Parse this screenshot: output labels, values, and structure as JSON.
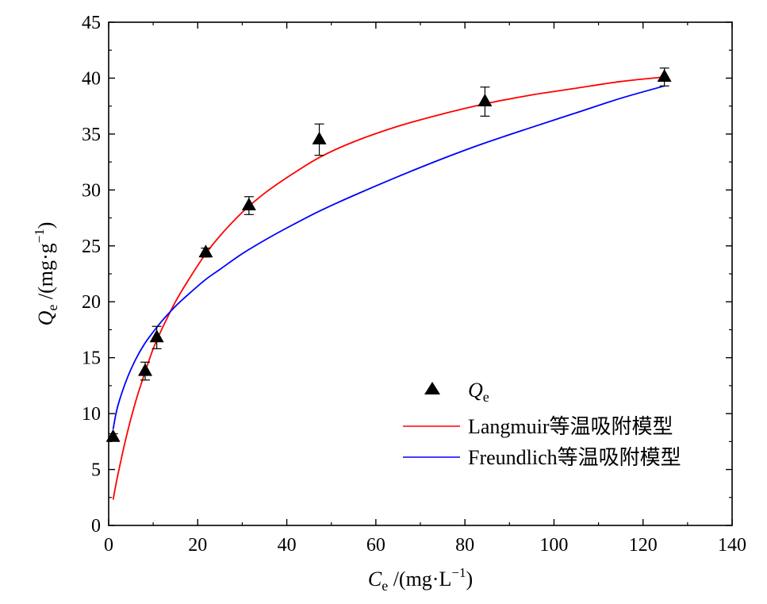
{
  "chart_data": {
    "type": "scatter",
    "title": "",
    "xlabel": {
      "main": "C",
      "sub": "e",
      "unit_pre": " /(mg·L",
      "unit_sup": "−1",
      "unit_post": ")"
    },
    "ylabel": {
      "main": "Q",
      "sub": "e",
      "unit_pre": " /(mg·g",
      "unit_sup": "−1",
      "unit_post": ")"
    },
    "xlim": [
      0,
      140
    ],
    "ylim": [
      0,
      45
    ],
    "xticks": [
      0,
      20,
      40,
      60,
      80,
      100,
      120,
      140
    ],
    "yticks": [
      0,
      5,
      10,
      15,
      20,
      25,
      30,
      35,
      40,
      45
    ],
    "grid": false,
    "legend_position": "lower-right",
    "series": [
      {
        "name": "Q",
        "name_sub": "e",
        "kind": "points",
        "marker": "triangle",
        "color": "#000000",
        "x": [
          1.0,
          8.2,
          10.8,
          21.8,
          31.5,
          47.3,
          84.5,
          124.8
        ],
        "y": [
          7.9,
          13.8,
          16.8,
          24.4,
          28.6,
          34.5,
          37.9,
          40.1
        ],
        "err": [
          0.3,
          0.8,
          1.0,
          0.4,
          0.8,
          1.4,
          1.3,
          0.8
        ]
      },
      {
        "name": "Langmuir等温吸附模型",
        "kind": "line",
        "color": "#ff0000",
        "x": [
          1,
          2,
          4,
          6,
          8,
          10,
          12,
          15,
          18,
          21.8,
          25,
          30,
          35,
          40,
          47.3,
          55,
          65,
          75,
          84.5,
          95,
          105,
          115,
          124.8
        ],
        "y": [
          2.3,
          4.4,
          8.0,
          11.0,
          13.5,
          15.8,
          17.6,
          20.0,
          22.0,
          24.3,
          25.9,
          28.0,
          29.7,
          31.1,
          32.9,
          34.3,
          35.7,
          36.8,
          37.7,
          38.5,
          39.1,
          39.7,
          40.1
        ]
      },
      {
        "name": "Freundlich等温吸附模型",
        "kind": "line",
        "color": "#0000ff",
        "x": [
          1,
          2,
          4,
          6,
          8,
          10,
          12,
          15,
          18,
          21.8,
          25,
          30,
          35,
          40,
          47.3,
          55,
          65,
          75,
          84.5,
          95,
          105,
          115,
          124.8
        ],
        "y": [
          8.6,
          10.6,
          13.0,
          14.8,
          16.2,
          17.3,
          18.3,
          19.6,
          20.7,
          22.0,
          22.9,
          24.3,
          25.5,
          26.6,
          28.1,
          29.5,
          31.2,
          32.8,
          34.2,
          35.6,
          36.9,
          38.2,
          39.3
        ]
      }
    ]
  }
}
